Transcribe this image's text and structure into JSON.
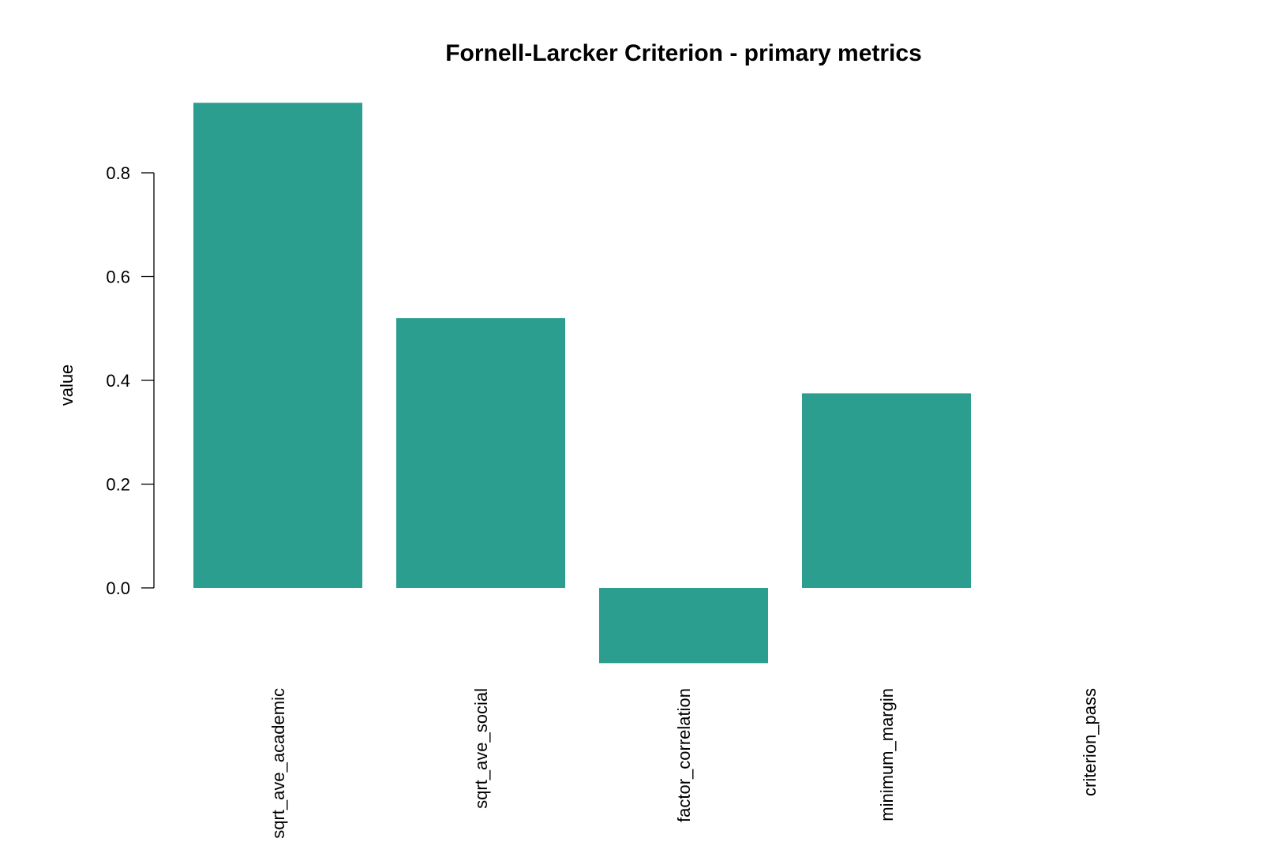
{
  "chart_data": {
    "type": "bar",
    "title": "Fornell-Larcker Criterion - primary metrics",
    "xlabel": "",
    "ylabel": "value",
    "categories": [
      "sqrt_ave_academic",
      "sqrt_ave_social",
      "factor_correlation",
      "minimum_margin",
      "criterion_pass"
    ],
    "values": [
      0.935,
      0.52,
      -0.145,
      0.375,
      0
    ],
    "y_ticks": [
      "0.0",
      "0.2",
      "0.4",
      "0.6",
      "0.8"
    ],
    "ylim": [
      -0.16,
      0.96
    ],
    "bar_color": "#2b9e8f",
    "grid": false,
    "legend": "none"
  }
}
